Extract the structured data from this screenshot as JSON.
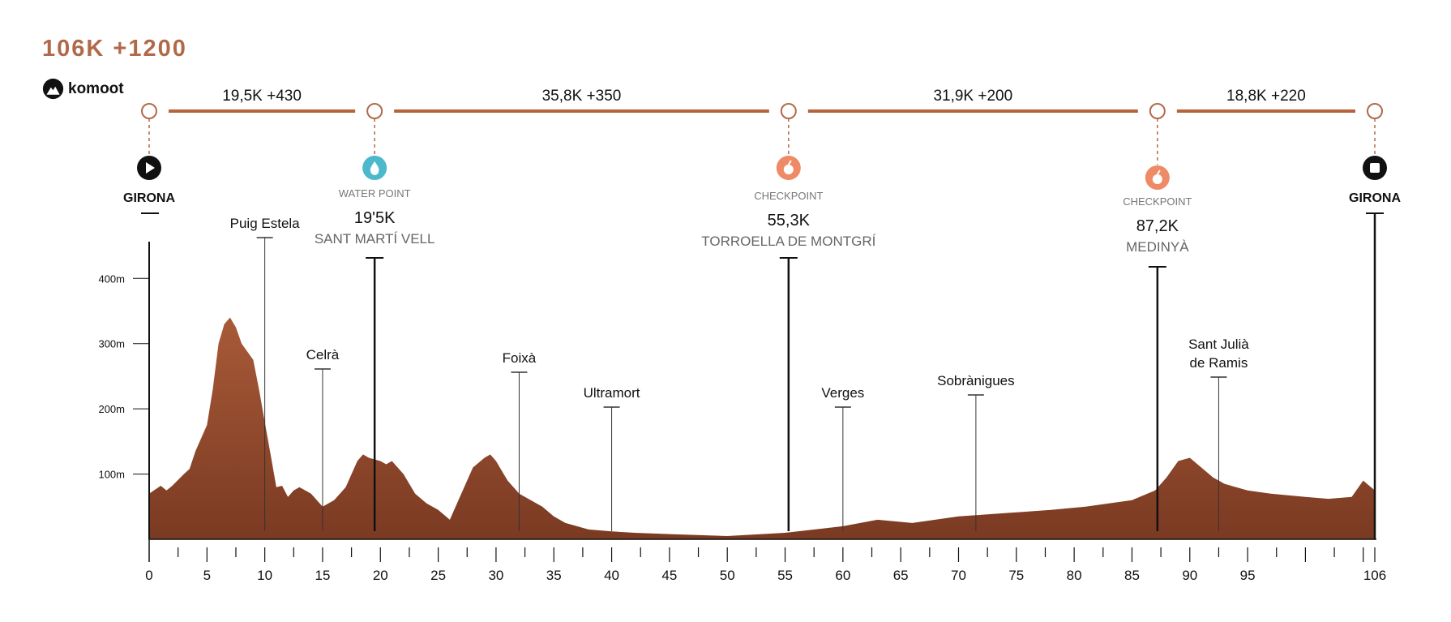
{
  "header": {
    "title": "106K +1200",
    "brand": "komoot"
  },
  "colors": {
    "accent": "#b06a4a",
    "fill": "#9a5233",
    "segment": "#b5643c",
    "water": "#4bb8cc",
    "checkpoint": "#ee8a66"
  },
  "segments": [
    {
      "label": "19,5K +430"
    },
    {
      "label": "35,8K +350"
    },
    {
      "label": "31,9K +200"
    },
    {
      "label": "18,8K +220"
    }
  ],
  "stations": [
    {
      "km": 0,
      "icon": "play-icon",
      "type": "",
      "name": "GIRONA",
      "distance": "",
      "place": ""
    },
    {
      "km": 19.5,
      "icon": "water-drop-icon",
      "type": "WATER POINT",
      "name": "",
      "distance": "19'5K",
      "place": "SANT MARTÍ VELL"
    },
    {
      "km": 55.3,
      "icon": "apple-icon",
      "type": "CHECKPOINT",
      "name": "",
      "distance": "55,3K",
      "place": "TORROELLA DE MONTGRÍ"
    },
    {
      "km": 87.2,
      "icon": "apple-icon",
      "type": "CHECKPOINT",
      "name": "",
      "distance": "87,2K",
      "place": "MEDINYÀ"
    },
    {
      "km": 106,
      "icon": "stop-icon",
      "type": "",
      "name": "GIRONA",
      "distance": "",
      "place": ""
    }
  ],
  "chart_data": {
    "type": "area",
    "title": "",
    "xlabel": "",
    "ylabel": "",
    "x_unit": "km",
    "y_unit": "m",
    "xlim": [
      0,
      106
    ],
    "ylim": [
      0,
      460
    ],
    "x_ticks": [
      0,
      5,
      10,
      15,
      20,
      25,
      30,
      35,
      40,
      45,
      50,
      55,
      60,
      65,
      70,
      75,
      80,
      85,
      90,
      95,
      106
    ],
    "y_ticks": [
      100,
      200,
      300,
      400
    ],
    "y_tick_labels": [
      "100m",
      "200m",
      "300m",
      "400m"
    ],
    "series": [
      {
        "x": [
          0,
          1,
          1.5,
          2,
          3,
          3.5,
          4,
          5,
          5.5,
          6,
          6.5,
          7,
          7.5,
          8,
          9,
          9.5,
          10,
          10.5,
          11,
          11.5,
          12,
          12.5,
          13,
          14,
          15,
          16,
          17,
          18,
          18.5,
          19,
          20,
          20.5,
          21,
          22,
          23,
          24,
          25,
          26,
          27,
          28,
          29,
          29.5,
          30,
          31,
          32,
          33,
          34,
          35,
          36,
          37,
          38,
          40,
          42,
          45,
          50,
          55,
          60,
          63,
          66,
          70,
          74,
          78,
          81,
          83,
          85,
          87,
          88,
          89,
          90,
          91,
          92,
          93,
          94,
          95,
          97,
          100,
          102,
          104,
          105,
          106
        ],
        "y": [
          70,
          82,
          75,
          82,
          100,
          108,
          135,
          175,
          230,
          300,
          330,
          340,
          325,
          300,
          275,
          230,
          180,
          130,
          80,
          82,
          65,
          75,
          80,
          70,
          50,
          60,
          80,
          120,
          130,
          125,
          120,
          115,
          120,
          100,
          70,
          55,
          45,
          30,
          70,
          110,
          125,
          130,
          120,
          90,
          70,
          60,
          50,
          35,
          25,
          20,
          15,
          12,
          10,
          8,
          5,
          10,
          20,
          30,
          25,
          35,
          40,
          45,
          50,
          55,
          60,
          75,
          95,
          120,
          125,
          110,
          95,
          85,
          80,
          75,
          70,
          65,
          62,
          65,
          90,
          75
        ]
      }
    ],
    "annotations": [
      {
        "label": "Puig Estela",
        "km": 10
      },
      {
        "label": "Celrà",
        "km": 15
      },
      {
        "label": "Foixà",
        "km": 32
      },
      {
        "label": "Ultramort",
        "km": 40
      },
      {
        "label": "Verges",
        "km": 60
      },
      {
        "label": "Sobrànigues",
        "km": 71.5
      },
      {
        "label": "Sant Julià de Ramis",
        "km": 92.5
      }
    ]
  }
}
